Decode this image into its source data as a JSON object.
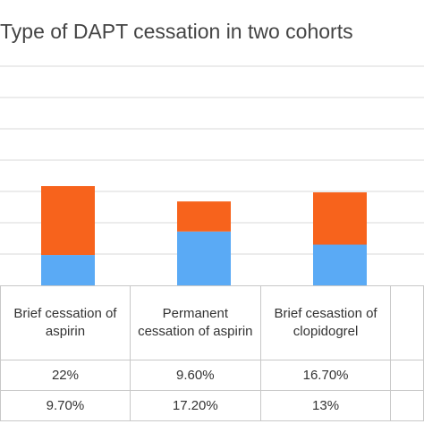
{
  "chart_data": {
    "type": "bar",
    "stacked": true,
    "title": "Type of DAPT cessation in two cohorts",
    "categories": [
      "Brief cessation of aspirin",
      "Permanent cessation of aspirin",
      "Brief cesastion of clopidogrel"
    ],
    "series": [
      {
        "values": [
          9.7,
          17.2,
          13.0
        ],
        "labels": [
          "9.70%",
          "17.20%",
          "13%"
        ],
        "color": "#5aaaf5"
      },
      {
        "values": [
          22.0,
          9.6,
          16.7
        ],
        "labels": [
          "22%",
          "9.60%",
          "16.70%"
        ],
        "color": "#f7631c"
      }
    ],
    "ylim": [
      0,
      77
    ],
    "grid": true,
    "legend": "none"
  }
}
